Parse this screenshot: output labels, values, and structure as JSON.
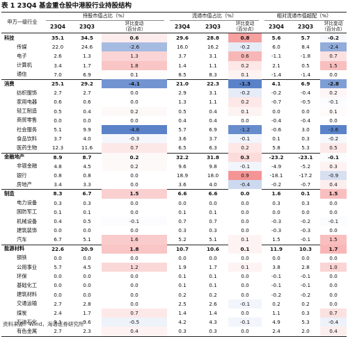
{
  "title": "表 1 23Q4 基金重仓股中港股行业持股结构",
  "source": "资料来源：Wind，海通证券研究所",
  "header": {
    "industry": "申万一级行业",
    "groups": [
      "持股市值占比（%）",
      "流通市值占比（%）",
      "相对流通市值超配（%）"
    ],
    "q4": "23Q4",
    "q3": "23Q3",
    "chg_line1": "环比变动",
    "chg_line2": "（百分点）"
  },
  "rows": [
    {
      "name": "科技",
      "level": "sector",
      "v": [
        "35.1",
        "34.5",
        "0.6",
        "29.6",
        "28.8",
        "0.8",
        "5.6",
        "5.7",
        "-0.2"
      ]
    },
    {
      "name": "传媒",
      "level": "sub",
      "v": [
        "22.0",
        "24.6",
        "-2.6",
        "16.0",
        "16.2",
        "-0.2",
        "6.0",
        "8.4",
        "-2.4"
      ]
    },
    {
      "name": "电子",
      "level": "sub",
      "v": [
        "2.6",
        "1.3",
        "1.3",
        "3.7",
        "3.1",
        "0.6",
        "-1.1",
        "-1.8",
        "0.7"
      ]
    },
    {
      "name": "计算机",
      "level": "sub",
      "v": [
        "3.4",
        "1.7",
        "1.8",
        "1.4",
        "1.1",
        "0.2",
        "2.1",
        "0.5",
        "1.5"
      ]
    },
    {
      "name": "通信",
      "level": "sub",
      "v": [
        "7.0",
        "6.9",
        "0.1",
        "8.5",
        "8.3",
        "0.1",
        "-1.4",
        "-1.4",
        "0.0"
      ]
    },
    {
      "name": "消费",
      "level": "sector",
      "v": [
        "25.1",
        "29.2",
        "-4.1",
        "21.0",
        "22.3",
        "-1.3",
        "4.1",
        "6.9",
        "-2.8"
      ]
    },
    {
      "name": "纺织服饰",
      "level": "sub",
      "v": [
        "2.7",
        "2.7",
        "0.0",
        "2.9",
        "3.1",
        "-0.2",
        "-0.2",
        "-0.4",
        "0.2"
      ]
    },
    {
      "name": "家用电器",
      "level": "sub",
      "v": [
        "0.6",
        "0.6",
        "0.0",
        "1.3",
        "1.1",
        "0.2",
        "-0.7",
        "-0.5",
        "-0.1"
      ]
    },
    {
      "name": "轻工制造",
      "level": "sub",
      "v": [
        "0.5",
        "0.4",
        "0.2",
        "0.5",
        "0.4",
        "0.1",
        "0.0",
        "0.0",
        "0.1"
      ]
    },
    {
      "name": "商贸零售",
      "level": "sub",
      "v": [
        "0.0",
        "0.0",
        "0.0",
        "0.4",
        "0.4",
        "0.0",
        "-0.4",
        "-0.4",
        "0.0"
      ]
    },
    {
      "name": "社会服务",
      "level": "sub",
      "v": [
        "5.1",
        "9.9",
        "-4.8",
        "5.7",
        "6.9",
        "-1.2",
        "-0.6",
        "3.0",
        "-3.6"
      ]
    },
    {
      "name": "食品饮料",
      "level": "sub",
      "v": [
        "3.7",
        "4.0",
        "-0.3",
        "3.6",
        "3.7",
        "-0.1",
        "0.1",
        "0.3",
        "-0.2"
      ]
    },
    {
      "name": "医药生物",
      "level": "sub",
      "v": [
        "12.3",
        "11.6",
        "0.7",
        "6.5",
        "6.3",
        "0.2",
        "5.8",
        "5.3",
        "0.5"
      ]
    },
    {
      "name": "金融地产",
      "level": "sector",
      "v": [
        "8.9",
        "8.7",
        "0.2",
        "32.2",
        "31.8",
        "0.3",
        "-23.2",
        "-23.1",
        "-0.1"
      ]
    },
    {
      "name": "非银金融",
      "level": "sub",
      "v": [
        "4.8",
        "4.5",
        "0.2",
        "9.6",
        "9.8",
        "-0.1",
        "-4.9",
        "-5.2",
        "0.3"
      ]
    },
    {
      "name": "银行",
      "level": "sub",
      "v": [
        "0.8",
        "0.8",
        "0.0",
        "18.9",
        "18.0",
        "0.9",
        "-18.1",
        "-17.2",
        "-0.9"
      ]
    },
    {
      "name": "房地产",
      "level": "sub",
      "v": [
        "3.4",
        "3.3",
        "0.0",
        "3.6",
        "4.0",
        "-0.4",
        "-0.2",
        "-0.7",
        "0.4"
      ]
    },
    {
      "name": "制造",
      "level": "sector",
      "v": [
        "8.3",
        "6.7",
        "1.5",
        "6.6",
        "6.6",
        "0.0",
        "1.6",
        "0.1",
        "1.5"
      ]
    },
    {
      "name": "电力设备",
      "level": "sub",
      "v": [
        "0.3",
        "0.3",
        "0.0",
        "0.0",
        "0.0",
        "0.0",
        "0.3",
        "0.3",
        "0.0"
      ]
    },
    {
      "name": "国防军工",
      "level": "sub",
      "v": [
        "0.1",
        "0.1",
        "0.0",
        "0.1",
        "0.1",
        "0.0",
        "0.0",
        "0.0",
        "0.0"
      ]
    },
    {
      "name": "机械设备",
      "level": "sub",
      "v": [
        "0.4",
        "0.5",
        "-0.1",
        "0.7",
        "0.7",
        "0.0",
        "-0.3",
        "-0.2",
        "-0.1"
      ]
    },
    {
      "name": "建筑装饰",
      "level": "sub",
      "v": [
        "0.0",
        "0.0",
        "0.0",
        "0.3",
        "0.3",
        "0.0",
        "-0.3",
        "-0.3",
        "0.0"
      ]
    },
    {
      "name": "汽车",
      "level": "sub",
      "v": [
        "6.7",
        "5.1",
        "1.6",
        "5.2",
        "5.1",
        "0.1",
        "1.5",
        "-0.1",
        "1.5"
      ]
    },
    {
      "name": "能源材料",
      "level": "sector",
      "v": [
        "22.6",
        "20.9",
        "1.8",
        "10.7",
        "10.6",
        "0.1",
        "11.9",
        "10.3",
        "1.7"
      ]
    },
    {
      "name": "钢铁",
      "level": "sub",
      "v": [
        "0.0",
        "0.0",
        "0.0",
        "0.0",
        "0.0",
        "0.0",
        "0.0",
        "0.0",
        "0.0"
      ]
    },
    {
      "name": "公用事业",
      "level": "sub",
      "v": [
        "5.7",
        "4.5",
        "1.2",
        "1.9",
        "1.7",
        "0.1",
        "3.8",
        "2.8",
        "1.0"
      ]
    },
    {
      "name": "环保",
      "level": "sub",
      "v": [
        "0.0",
        "0.0",
        "0.0",
        "0.1",
        "0.1",
        "0.0",
        "-0.1",
        "-0.1",
        "0.0"
      ]
    },
    {
      "name": "基础化工",
      "level": "sub",
      "v": [
        "0.0",
        "0.0",
        "0.0",
        "0.1",
        "0.1",
        "0.0",
        "-0.1",
        "-0.1",
        "0.0"
      ]
    },
    {
      "name": "建筑材料",
      "level": "sub",
      "v": [
        "0.0",
        "0.0",
        "0.0",
        "0.2",
        "0.2",
        "0.0",
        "-0.2",
        "-0.2",
        "0.0"
      ]
    },
    {
      "name": "交通运输",
      "level": "sub",
      "v": [
        "2.7",
        "2.8",
        "0.0",
        "2.5",
        "2.6",
        "-0.1",
        "0.2",
        "0.2",
        "0.0"
      ]
    },
    {
      "name": "煤炭",
      "level": "sub",
      "v": [
        "2.4",
        "1.7",
        "0.7",
        "1.4",
        "1.4",
        "0.0",
        "1.1",
        "0.3",
        "0.7"
      ]
    },
    {
      "name": "石油石化",
      "level": "sub",
      "v": [
        "9.1",
        "9.6",
        "-0.5",
        "4.2",
        "4.3",
        "-0.1",
        "4.9",
        "5.3",
        "-0.4"
      ]
    },
    {
      "name": "有色金属",
      "level": "sub",
      "v": [
        "2.7",
        "2.3",
        "0.4",
        "0.3",
        "0.3",
        "0.0",
        "2.4",
        "2.0",
        "0.4"
      ]
    }
  ]
}
